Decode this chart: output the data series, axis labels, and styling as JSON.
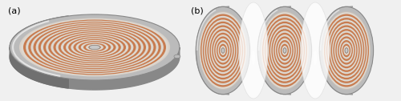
{
  "fig_width": 5.0,
  "fig_height": 1.26,
  "dpi": 100,
  "bg_color": "#f0f0f0",
  "label_a": "(a)",
  "label_b": "(b)",
  "label_fontsize": 8,
  "copper_color": "#c87c50",
  "copper_light": "#d89070",
  "copper_dark": "#a05030",
  "gap_color": "#ddd8d0",
  "frame_outer": "#aaaaaa",
  "frame_inner": "#888888",
  "frame_mid": "#bbbbbb",
  "frame_light": "#cccccc",
  "insul_color": "#f5f5f5",
  "center_color": "#c8c8c8",
  "n_turns_a": 14,
  "n_turns_b": 10
}
